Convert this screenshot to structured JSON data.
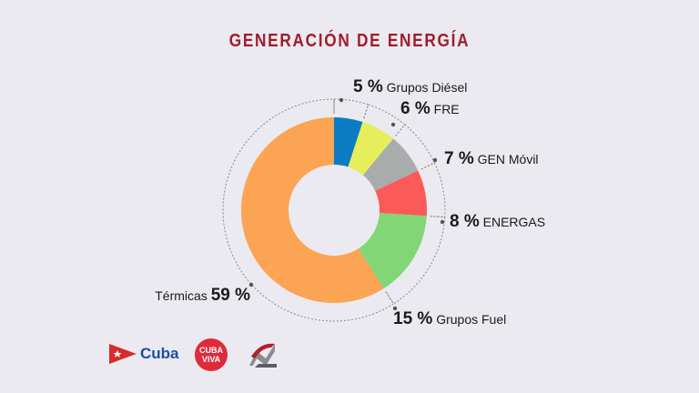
{
  "title": "GENERACIÓN DE ENERGÍA",
  "chart_data": {
    "type": "pie",
    "donut": true,
    "title": "GENERACIÓN DE ENERGÍA",
    "unit": "%",
    "slices": [
      {
        "label": "Grupos Diésel",
        "value": 5,
        "color": "#0c7cc4",
        "pct_text": "5 %"
      },
      {
        "label": "FRE",
        "value": 6,
        "color": "#e6ee5c",
        "pct_text": "6 %"
      },
      {
        "label": "GEN Móvil",
        "value": 7,
        "color": "#a8acab",
        "pct_text": "7 %"
      },
      {
        "label": "ENERGAS",
        "value": 8,
        "color": "#fa5a58",
        "pct_text": "8 %"
      },
      {
        "label": "Grupos Fuel",
        "value": 15,
        "color": "#82d675",
        "pct_text": "15 %"
      },
      {
        "label": "Térmicas",
        "value": 59,
        "color": "#fba454",
        "pct_text": "59 %"
      }
    ]
  },
  "logos": {
    "cuba_text": "Cuba",
    "cubaviva_line1": "CUBA",
    "cubaviva_line2": "VIVA"
  }
}
